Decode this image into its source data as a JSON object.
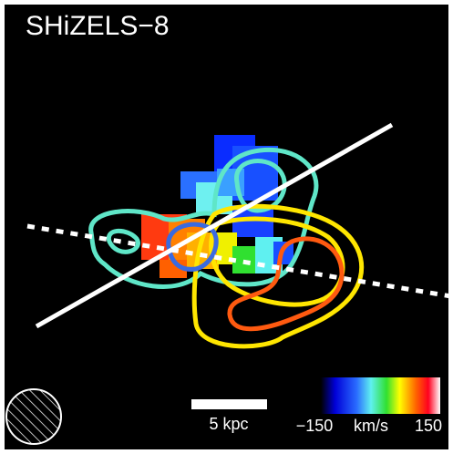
{
  "title": "SHiZELS−8",
  "scale_bar": {
    "label": "5 kpc"
  },
  "colorbar": {
    "ticks": [
      {
        "value": -150,
        "label": "−150"
      },
      {
        "value": 150,
        "label": "150"
      }
    ],
    "unit": "km/s"
  }
}
